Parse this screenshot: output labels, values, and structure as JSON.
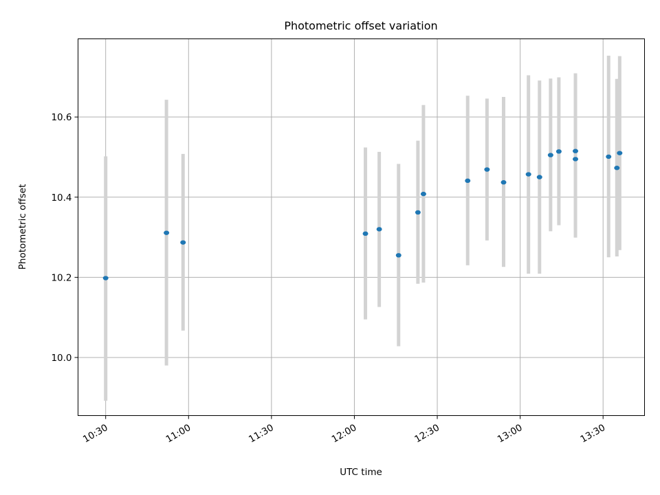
{
  "chart_data": {
    "type": "scatter",
    "title": "Photometric offset variation",
    "xlabel": "UTC time",
    "ylabel": "Photometric offset",
    "x_axis_type": "time",
    "xlim": [
      "10:20",
      "13:45"
    ],
    "ylim": [
      9.855,
      10.795
    ],
    "x_ticks": [
      "10:30",
      "11:00",
      "11:30",
      "12:00",
      "12:30",
      "13:00",
      "13:30"
    ],
    "y_ticks": [
      10.0,
      10.2,
      10.4,
      10.6
    ],
    "y_tick_labels": [
      "10.0",
      "10.2",
      "10.4",
      "10.6"
    ],
    "grid": true,
    "colors": {
      "point": "#1f77b4",
      "errorbar": "#d3d3d3",
      "grid": "#b0b0b0"
    },
    "points": [
      {
        "x": "10:30",
        "y": 10.198,
        "low": 9.892,
        "high": 10.502
      },
      {
        "x": "10:52",
        "y": 10.311,
        "low": 9.98,
        "high": 10.643
      },
      {
        "x": "10:58",
        "y": 10.287,
        "low": 10.067,
        "high": 10.508
      },
      {
        "x": "12:04",
        "y": 10.309,
        "low": 10.095,
        "high": 10.524
      },
      {
        "x": "12:09",
        "y": 10.32,
        "low": 10.126,
        "high": 10.513
      },
      {
        "x": "12:16",
        "y": 10.255,
        "low": 10.028,
        "high": 10.483
      },
      {
        "x": "12:23",
        "y": 10.362,
        "low": 10.184,
        "high": 10.541
      },
      {
        "x": "12:25",
        "y": 10.408,
        "low": 10.187,
        "high": 10.63
      },
      {
        "x": "12:41",
        "y": 10.441,
        "low": 10.23,
        "high": 10.653
      },
      {
        "x": "12:48",
        "y": 10.469,
        "low": 10.292,
        "high": 10.646
      },
      {
        "x": "12:54",
        "y": 10.437,
        "low": 10.226,
        "high": 10.65
      },
      {
        "x": "13:03",
        "y": 10.457,
        "low": 10.209,
        "high": 10.704
      },
      {
        "x": "13:07",
        "y": 10.45,
        "low": 10.209,
        "high": 10.691
      },
      {
        "x": "13:11",
        "y": 10.505,
        "low": 10.315,
        "high": 10.696
      },
      {
        "x": "13:14",
        "y": 10.514,
        "low": 10.33,
        "high": 10.699
      },
      {
        "x": "13:20",
        "y": 10.515,
        "low": 10.32,
        "high": 10.709
      },
      {
        "x": "13:20",
        "y": 10.495,
        "low": 10.299,
        "high": 10.692
      },
      {
        "x": "13:32",
        "y": 10.501,
        "low": 10.25,
        "high": 10.753
      },
      {
        "x": "13:35",
        "y": 10.473,
        "low": 10.252,
        "high": 10.695
      },
      {
        "x": "13:36",
        "y": 10.51,
        "low": 10.268,
        "high": 10.752
      }
    ]
  }
}
